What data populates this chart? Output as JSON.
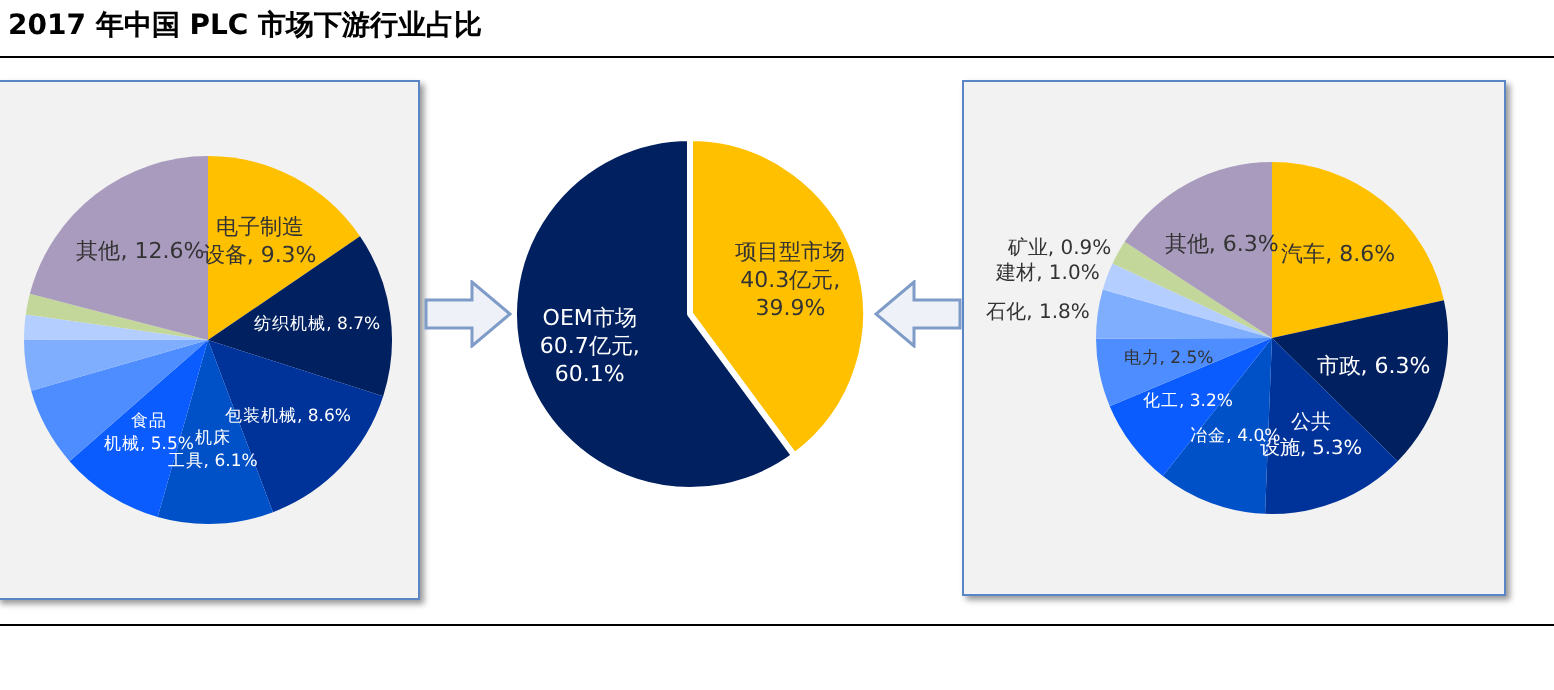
{
  "chart_data": [
    {
      "type": "pie",
      "title": "2017 年中国 PLC 市场下游行业占比",
      "categories": [
        "电子制造设备",
        "纺织机械",
        "包装机械",
        "机床工具",
        "食品机械",
        null,
        null,
        null,
        null,
        "其他"
      ],
      "values": [
        9.3,
        8.7,
        8.6,
        6.1,
        5.5,
        4.2,
        2.7,
        1.3,
        1.1,
        12.6
      ],
      "value_labels": [
        "9.3%",
        "8.7%",
        "8.6%",
        "6.1%",
        "5.5%",
        null,
        null,
        null,
        null,
        "12.6%"
      ],
      "colors": [
        "#ffc000",
        "#002060",
        "#00339a",
        "#0050c8",
        "#0a5cff",
        "#4d8dff",
        "#80aeff",
        "#b4cfff",
        "#c4d79b",
        "#a99bbd"
      ],
      "legend": false
    },
    {
      "type": "pie",
      "categories": [
        "项目型市场",
        "OEM市场"
      ],
      "values": [
        40.3,
        60.7
      ],
      "value_labels": [
        "40.3亿元, 39.9%",
        "60.7亿元, 60.1%"
      ],
      "colors": [
        "#ffc000",
        "#002060"
      ],
      "legend": false
    },
    {
      "type": "pie",
      "categories": [
        "汽车",
        "市政",
        "公共设施",
        "冶金",
        "化工",
        "电力",
        "石化",
        "建材",
        "矿业",
        "其他"
      ],
      "values": [
        8.6,
        6.3,
        5.3,
        4.0,
        3.2,
        2.5,
        1.8,
        1.0,
        0.9,
        6.3
      ],
      "value_labels": [
        "8.6%",
        "6.3%",
        "5.3%",
        "4.0%",
        "3.2%",
        "2.5%",
        "1.8%",
        "1.0%",
        "0.9%",
        "6.3%"
      ],
      "colors": [
        "#ffc000",
        "#002060",
        "#00339a",
        "#0050c8",
        "#0a5cff",
        "#4d8dff",
        "#80aeff",
        "#b4cfff",
        "#c4d79b",
        "#a99bbd"
      ],
      "legend": false
    }
  ]
}
